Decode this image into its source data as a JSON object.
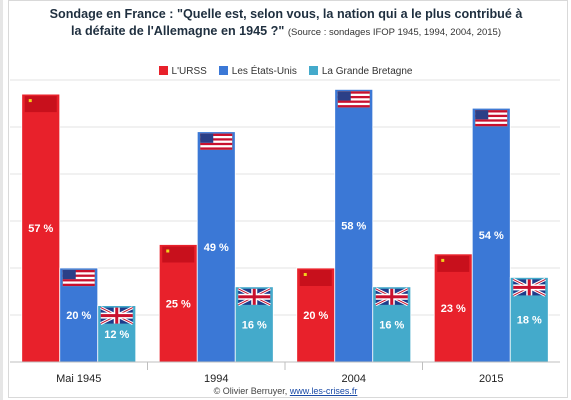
{
  "chart_data": {
    "type": "bar",
    "title": "Sondage en France : \"Quelle est, selon vous, la nation qui a le plus contribué à la défaite de l'Allemagne en 1945 ?\"",
    "title_line1": "Sondage en France : \"Quelle est, selon vous, la nation qui a le plus contribué à",
    "title_line2": "la défaite de l'Allemagne en 1945 ?\"",
    "source": "(Source : sondages IFOP 1945, 1994, 2004, 2015)",
    "categories": [
      "Mai 1945",
      "1994",
      "2004",
      "2015"
    ],
    "series": [
      {
        "name": "L'URSS",
        "values": [
          57,
          25,
          20,
          23
        ],
        "color": "#e8212b",
        "flag": "ussr-flag-icon"
      },
      {
        "name": "Les États-Unis",
        "values": [
          20,
          49,
          58,
          54
        ],
        "color": "#3b78d6",
        "flag": "usa-flag-icon"
      },
      {
        "name": "La Grande Bretagne",
        "values": [
          12,
          16,
          16,
          18
        ],
        "color": "#44aacb",
        "flag": "uk-flag-icon"
      }
    ],
    "value_suffix": " %",
    "ylim": [
      0,
      60
    ],
    "grid": true,
    "legend_position": "top-center",
    "xlabel": "",
    "ylabel": ""
  },
  "credit": {
    "text": "© Olivier Berruyer, ",
    "link": "www.les-crises.fr"
  }
}
